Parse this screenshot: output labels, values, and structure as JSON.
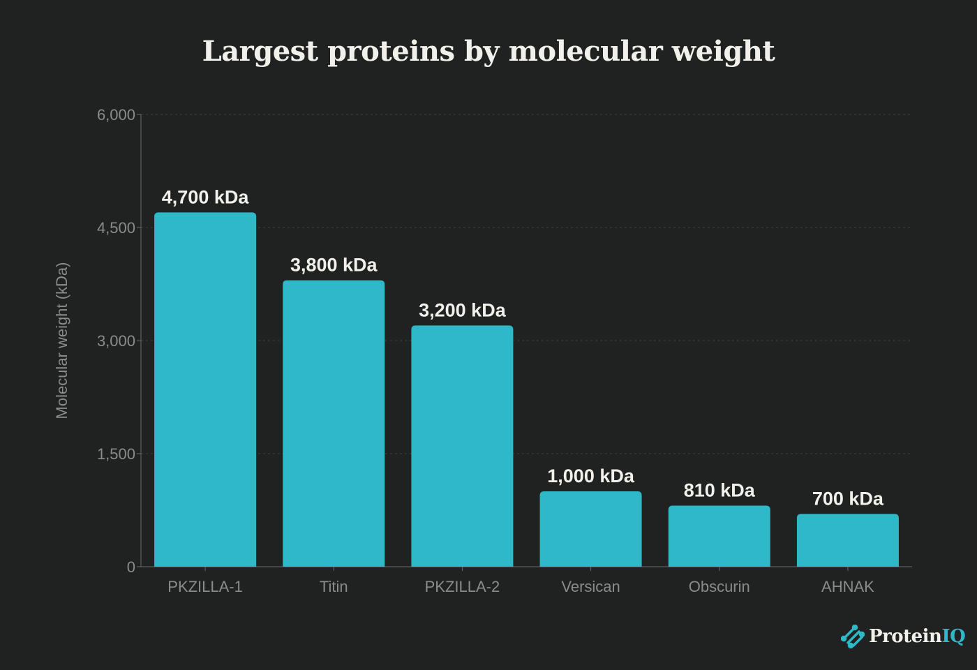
{
  "chart_data": {
    "type": "bar",
    "title": "Largest proteins by molecular weight",
    "xlabel": "",
    "ylabel": "Molecular weight (kDa)",
    "categories": [
      "PKZILLA-1",
      "Titin",
      "PKZILLA-2",
      "Versican",
      "Obscurin",
      "AHNAK"
    ],
    "values": [
      4700,
      3800,
      3200,
      1000,
      810,
      700
    ],
    "data_labels": [
      "4,700 kDa",
      "3,800 kDa",
      "3,200 kDa",
      "1,000 kDa",
      "810 kDa",
      "700 kDa"
    ],
    "ylim": [
      0,
      6000
    ],
    "yticks": [
      0,
      1500,
      3000,
      4500,
      6000
    ],
    "ytick_labels": [
      "0",
      "1,500",
      "3,000",
      "4,500",
      "6,000"
    ],
    "grid": true,
    "bar_color": "#2fb8c8",
    "background": "#202221"
  },
  "branding": {
    "logo_text": "Protein",
    "logo_text_accent": "IQ",
    "accent": "#2fb8c8"
  }
}
